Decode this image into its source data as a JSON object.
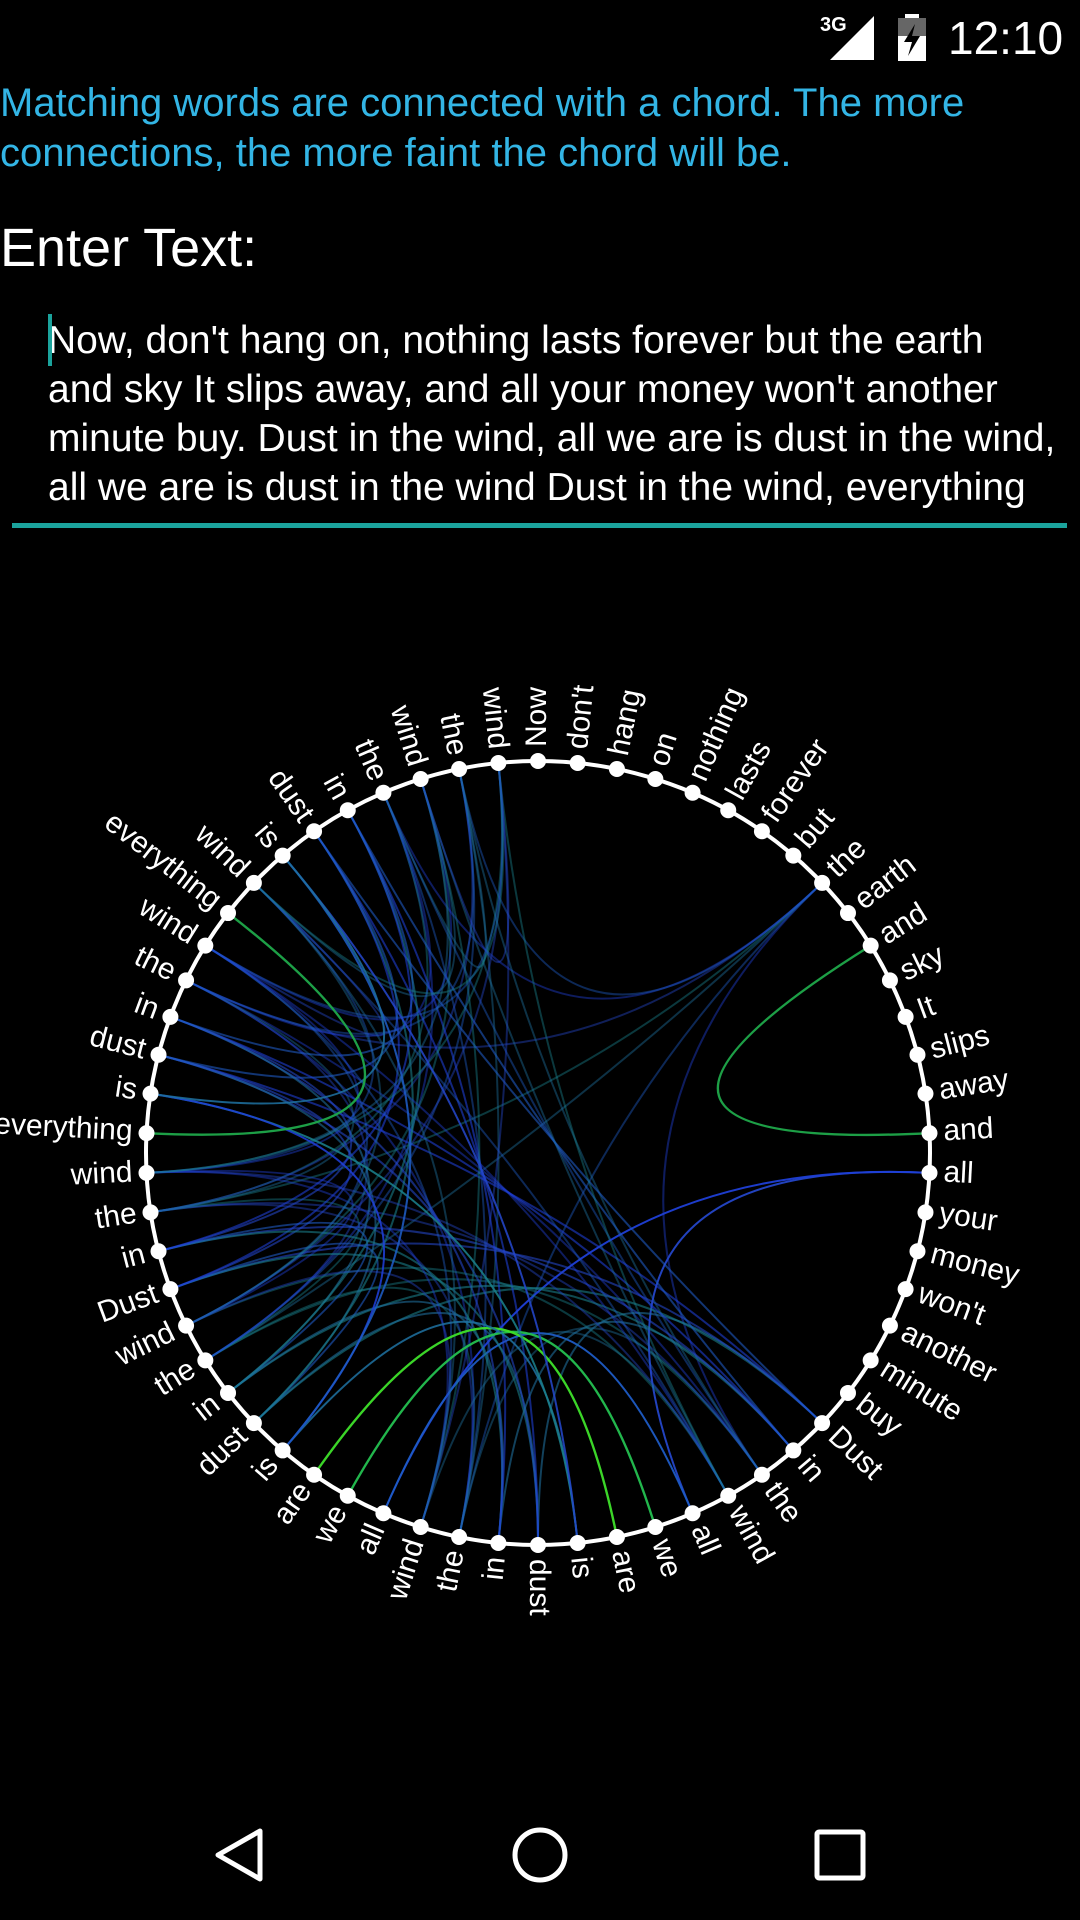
{
  "status_bar": {
    "network": "3G",
    "time": "12:10",
    "icons": [
      "signal-icon",
      "battery-charging-icon"
    ]
  },
  "hint": "Matching words are connected with a chord. The more connections, the more faint the chord will be.",
  "input": {
    "label": "Enter Text:",
    "value": "Now, don't hang on, nothing lasts forever but the earth and sky It slips away, and all your money won't another minute buy. Dust in the wind, all we are is dust in the wind, all we are is dust in the wind Dust in the wind, everything is dust in the wind The wind",
    "accent_color": "#1ba39c"
  },
  "hint_color": "#33b5e5",
  "chart_data": {
    "type": "chord",
    "words": [
      "Now",
      "don't",
      "hang",
      "on",
      "nothing",
      "lasts",
      "forever",
      "but",
      "the",
      "earth",
      "and",
      "sky",
      "It",
      "slips",
      "away",
      "and",
      "all",
      "your",
      "money",
      "won't",
      "another",
      "minute",
      "buy",
      "Dust",
      "in",
      "the",
      "wind",
      "all",
      "we",
      "are",
      "is",
      "dust",
      "in",
      "the",
      "wind",
      "all",
      "we",
      "are",
      "is",
      "dust",
      "in",
      "the",
      "wind",
      "Dust",
      "in",
      "the",
      "wind",
      "everything",
      "is",
      "dust",
      "in",
      "the",
      "wind",
      "everything",
      "wind",
      "is",
      "dust",
      "in",
      "the",
      "wind",
      "the",
      "wind"
    ]
  },
  "nav_bar": {
    "back": "back-icon",
    "home": "home-icon",
    "recents": "recents-icon"
  }
}
